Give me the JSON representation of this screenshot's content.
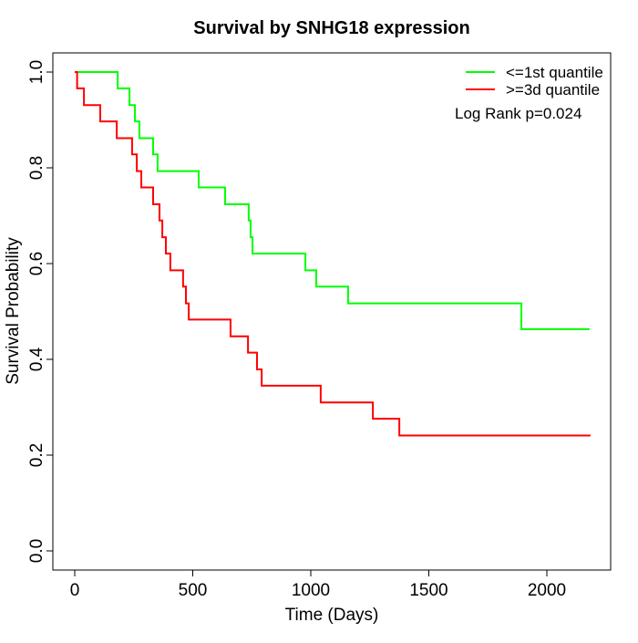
{
  "chart_data": {
    "type": "line",
    "subtype": "kaplan-meier-step-curves",
    "title": "Survival by SNHG18 expression",
    "xlabel": "Time (Days)",
    "ylabel": "Survival Probability",
    "annotation": "Log Rank p=0.024",
    "x_ticks": [
      0,
      500,
      1000,
      1500,
      2000
    ],
    "y_ticks": [
      0.0,
      0.2,
      0.4,
      0.6,
      0.8,
      1.0
    ],
    "xlim": [
      -90,
      2270
    ],
    "ylim": [
      -0.04,
      1.04
    ],
    "grid": false,
    "legend_position": "top-right",
    "series": [
      {
        "name": "<=1st quantile",
        "color": "#00ff00",
        "start": {
          "time": 0,
          "survival": 1.0
        },
        "steps": [
          [
            182,
            0.966
          ],
          [
            232,
            0.931
          ],
          [
            255,
            0.897
          ],
          [
            274,
            0.862
          ],
          [
            332,
            0.828
          ],
          [
            351,
            0.793
          ],
          [
            525,
            0.759
          ],
          [
            637,
            0.724
          ],
          [
            737,
            0.69
          ],
          [
            745,
            0.655
          ],
          [
            753,
            0.621
          ],
          [
            977,
            0.586
          ],
          [
            1023,
            0.552
          ],
          [
            1158,
            0.517
          ],
          [
            1892,
            0.463
          ]
        ],
        "end_time": 2181
      },
      {
        "name": ">=3d quantile",
        "color": "#ff0000",
        "start": {
          "time": 0,
          "survival": 1.0
        },
        "steps": [
          [
            10,
            0.966
          ],
          [
            39,
            0.931
          ],
          [
            108,
            0.897
          ],
          [
            178,
            0.862
          ],
          [
            243,
            0.828
          ],
          [
            263,
            0.793
          ],
          [
            282,
            0.759
          ],
          [
            332,
            0.724
          ],
          [
            359,
            0.69
          ],
          [
            371,
            0.655
          ],
          [
            386,
            0.621
          ],
          [
            405,
            0.586
          ],
          [
            459,
            0.552
          ],
          [
            471,
            0.517
          ],
          [
            483,
            0.483
          ],
          [
            660,
            0.448
          ],
          [
            734,
            0.414
          ],
          [
            772,
            0.379
          ],
          [
            792,
            0.345
          ],
          [
            1042,
            0.31
          ],
          [
            1263,
            0.276
          ],
          [
            1375,
            0.241
          ]
        ],
        "end_time": 2185
      }
    ]
  }
}
